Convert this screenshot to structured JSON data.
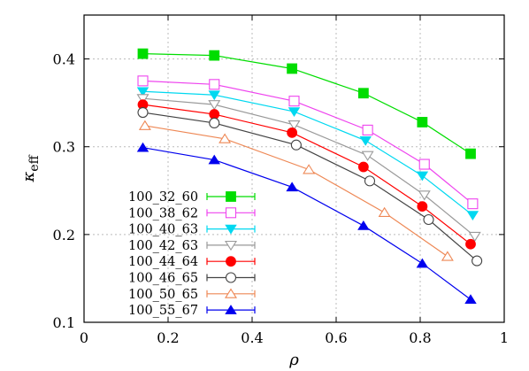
{
  "chart_data": {
    "type": "line",
    "title": "",
    "xlabel": "ρ",
    "ylabel_main": "κ",
    "ylabel_sub": "eff",
    "xlim": [
      0,
      1
    ],
    "ylim": [
      0.1,
      0.45
    ],
    "xticks": [
      0,
      0.2,
      0.4,
      0.6,
      0.8,
      1
    ],
    "xtick_labels": [
      "0",
      "0.2",
      "0.4",
      "0.6",
      "0.8",
      "1"
    ],
    "yticks": [
      0.1,
      0.2,
      0.3,
      0.4
    ],
    "ytick_labels": [
      "0.1",
      "0.2",
      "0.3",
      "0.4"
    ],
    "grid": true,
    "legend_position": "bottom-left",
    "series": [
      {
        "name": "100_32_60",
        "color": "#00dd00",
        "marker": "square-filled",
        "x": [
          0.14,
          0.31,
          0.495,
          0.665,
          0.805,
          0.92
        ],
        "y": [
          0.406,
          0.404,
          0.389,
          0.361,
          0.328,
          0.292
        ]
      },
      {
        "name": "100_38_62",
        "color": "#ee44ee",
        "marker": "square-open",
        "x": [
          0.14,
          0.31,
          0.5,
          0.675,
          0.81,
          0.925
        ],
        "y": [
          0.375,
          0.371,
          0.352,
          0.319,
          0.28,
          0.235
        ]
      },
      {
        "name": "100_40_63",
        "color": "#00d8f0",
        "marker": "triangle-down-filled",
        "x": [
          0.14,
          0.31,
          0.5,
          0.67,
          0.805,
          0.925
        ],
        "y": [
          0.363,
          0.359,
          0.34,
          0.307,
          0.267,
          0.222
        ]
      },
      {
        "name": "100_42_63",
        "color": "#999999",
        "marker": "triangle-down-open",
        "x": [
          0.14,
          0.31,
          0.5,
          0.675,
          0.81,
          0.93
        ],
        "y": [
          0.355,
          0.348,
          0.325,
          0.29,
          0.245,
          0.198
        ]
      },
      {
        "name": "100_44_64",
        "color": "#ff0000",
        "marker": "circle-filled",
        "x": [
          0.14,
          0.31,
          0.495,
          0.665,
          0.805,
          0.92
        ],
        "y": [
          0.348,
          0.337,
          0.316,
          0.277,
          0.232,
          0.189
        ]
      },
      {
        "name": "100_46_65",
        "color": "#444444",
        "marker": "circle-open",
        "x": [
          0.14,
          0.31,
          0.505,
          0.68,
          0.82,
          0.935
        ],
        "y": [
          0.339,
          0.327,
          0.302,
          0.261,
          0.217,
          0.17
        ]
      },
      {
        "name": "100_50_65",
        "color": "#ee8855",
        "marker": "triangle-up-open",
        "x": [
          0.145,
          0.335,
          0.535,
          0.715,
          0.865
        ],
        "y": [
          0.324,
          0.309,
          0.274,
          0.225,
          0.175
        ]
      },
      {
        "name": "100_55_67",
        "color": "#0000ee",
        "marker": "triangle-up-filled",
        "x": [
          0.14,
          0.31,
          0.495,
          0.665,
          0.805,
          0.92
        ],
        "y": [
          0.299,
          0.285,
          0.254,
          0.21,
          0.167,
          0.126
        ]
      }
    ]
  }
}
